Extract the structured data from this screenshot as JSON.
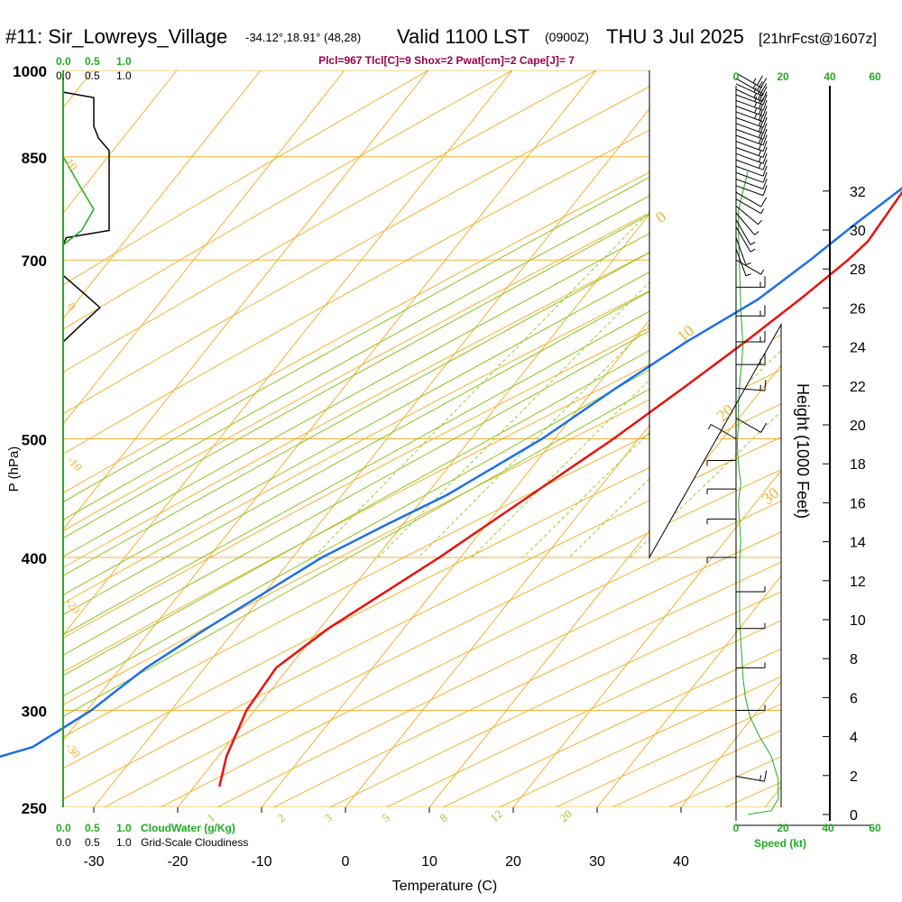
{
  "header": {
    "station": "#11: Sir_Lowreys_Village",
    "coords": "-34.12°,18.91° (48,28)",
    "valid_prefix": "Valid 1100 LST",
    "valid_utc": "(0900Z)",
    "date": "THU 3 Jul 2025",
    "forecast": "[21hrFcst@1607z]"
  },
  "indices": "Plcl=967 Tlcl[C]=9 Shox=2 Pwat[cm]=2 Cape[J]= 7",
  "left_scales": {
    "cloudwater_ticks": [
      "0.0",
      "0.5",
      "1.0"
    ],
    "cloudiness_ticks": [
      "0.0",
      "0.5",
      "1.0"
    ],
    "cloudwater_label": "CloudWater (g/Kg)",
    "cloudiness_label": "Grid-Scale Cloudiness"
  },
  "right_scales": {
    "speed_ticks_green": [
      "20",
      "60"
    ],
    "speed_ticks_black": [
      "0",
      "40"
    ],
    "speed_label": "Speed (kt)"
  },
  "colors": {
    "isobar": "#f2b233",
    "isotherm": "#f2b233",
    "dry_adiabat": "#f2b233",
    "moist_adiabat": "#8fc21f",
    "mixing_ratio": "#9acd32",
    "temperature": "#e8120c",
    "dewpoint": "#1e6fe8",
    "wind_speed": "#22aa22",
    "cloud_water": "#22aa22",
    "cloudiness": "#000000",
    "indices": "#99004c"
  },
  "chart_data": {
    "type": "line",
    "title": "",
    "xlabel": "Temperature (C)",
    "ylabel": "P (hPa)",
    "ylabel_right": "Height (1000 Feet)",
    "x_ticks": [
      -30,
      -20,
      -10,
      0,
      10,
      20,
      30,
      40
    ],
    "y_ticks": [
      250,
      300,
      400,
      500,
      700,
      850,
      1000
    ],
    "height_ticks": [
      0,
      2,
      4,
      6,
      8,
      10,
      12,
      14,
      16,
      18,
      20,
      22,
      24,
      26,
      28,
      30,
      32
    ],
    "isotherm_labels": [
      {
        "temp": -40,
        "text": "0"
      },
      {
        "temp": -30,
        "text": "10"
      },
      {
        "temp": -20,
        "text": "20"
      },
      {
        "temp": -10,
        "text": "30"
      }
    ],
    "dry_adiabat_labels": [
      "10",
      "0",
      "-10",
      "-20",
      "-30"
    ],
    "mixing_ratio_labels": [
      "1",
      "2",
      "3",
      "5",
      "8",
      "12",
      "20"
    ],
    "series": [
      {
        "name": "Temperature",
        "points": [
          [
            1000,
            14.1
          ],
          [
            975,
            11.8
          ],
          [
            950,
            10.8
          ],
          [
            925,
            10.1
          ],
          [
            900,
            9.6
          ],
          [
            875,
            9.2
          ],
          [
            850,
            8.8
          ],
          [
            800,
            8.0
          ],
          [
            750,
            8.4
          ],
          [
            725,
            8.6
          ],
          [
            700,
            8.0
          ],
          [
            650,
            6.0
          ],
          [
            600,
            3.5
          ],
          [
            550,
            0.5
          ],
          [
            500,
            -3.0
          ],
          [
            450,
            -7.5
          ],
          [
            400,
            -12.5
          ],
          [
            350,
            -19.0
          ],
          [
            325,
            -21.5
          ],
          [
            300,
            -21.0
          ],
          [
            275,
            -19.0
          ],
          [
            260,
            -17.0
          ]
        ]
      },
      {
        "name": "Dewpoint",
        "points": [
          [
            1000,
            11.8
          ],
          [
            975,
            11.0
          ],
          [
            950,
            10.4
          ],
          [
            925,
            9.8
          ],
          [
            900,
            9.3
          ],
          [
            875,
            9.1
          ],
          [
            850,
            8.6
          ],
          [
            800,
            7.6
          ],
          [
            750,
            5.5
          ],
          [
            725,
            4.5
          ],
          [
            700,
            3.5
          ],
          [
            650,
            1.0
          ],
          [
            600,
            -3.5
          ],
          [
            550,
            -7.5
          ],
          [
            500,
            -11.5
          ],
          [
            450,
            -17.5
          ],
          [
            425,
            -22.0
          ],
          [
            400,
            -26.5
          ],
          [
            350,
            -33.5
          ],
          [
            325,
            -37.0
          ],
          [
            310,
            -38.5
          ],
          [
            300,
            -39.5
          ],
          [
            280,
            -43.0
          ],
          [
            270,
            -49.0
          ],
          [
            262,
            -55.0
          ]
        ]
      }
    ],
    "wind_speed_profile": [
      [
        0.0,
        5
      ],
      [
        0.2,
        15
      ],
      [
        0.8,
        18
      ],
      [
        1.8,
        18
      ],
      [
        3.0,
        15
      ],
      [
        4.0,
        10
      ],
      [
        5.0,
        6
      ],
      [
        6.0,
        4
      ],
      [
        7.0,
        3
      ],
      [
        8.0,
        2.5
      ],
      [
        9.0,
        2
      ],
      [
        10.0,
        1.5
      ],
      [
        11.0,
        1.5
      ],
      [
        12.0,
        1.5
      ],
      [
        13.0,
        1.5
      ],
      [
        14.0,
        2
      ],
      [
        15.0,
        1.5
      ],
      [
        16.0,
        1
      ],
      [
        17.0,
        2
      ],
      [
        18.0,
        1
      ],
      [
        19.0,
        0.5
      ],
      [
        20.0,
        1
      ],
      [
        21.0,
        1
      ],
      [
        22.0,
        1.5
      ],
      [
        24.0,
        3
      ],
      [
        26.0,
        2
      ],
      [
        28.0,
        1.5
      ],
      [
        30.0,
        1
      ],
      [
        31.0,
        1
      ],
      [
        32.0,
        3
      ],
      [
        33.0,
        5
      ]
    ],
    "cloudiness_profile": [
      [
        1000,
        0.0
      ],
      [
        960,
        0.0
      ],
      [
        950,
        0.5
      ],
      [
        900,
        0.5
      ],
      [
        880,
        0.58
      ],
      [
        860,
        0.75
      ],
      [
        850,
        0.75
      ],
      [
        770,
        0.75
      ],
      [
        740,
        0.75
      ],
      [
        730,
        0.05
      ],
      [
        720,
        0.0
      ]
    ],
    "cloudiness_upper": [
      [
        680,
        0.0
      ],
      [
        660,
        0.3
      ],
      [
        640,
        0.6
      ],
      [
        620,
        0.3
      ],
      [
        600,
        0.0
      ]
    ],
    "cloudwater_profile": [
      [
        1000,
        0.0
      ],
      [
        850,
        0.0
      ],
      [
        800,
        0.3
      ],
      [
        770,
        0.5
      ],
      [
        740,
        0.3
      ],
      [
        720,
        0.0
      ]
    ],
    "wind_barbs": [
      {
        "p": 995,
        "dir": 300,
        "spd": 25
      },
      {
        "p": 985,
        "dir": 300,
        "spd": 25
      },
      {
        "p": 975,
        "dir": 295,
        "spd": 25
      },
      {
        "p": 965,
        "dir": 295,
        "spd": 25
      },
      {
        "p": 955,
        "dir": 290,
        "spd": 25
      },
      {
        "p": 945,
        "dir": 290,
        "spd": 25
      },
      {
        "p": 935,
        "dir": 290,
        "spd": 25
      },
      {
        "p": 925,
        "dir": 290,
        "spd": 25
      },
      {
        "p": 915,
        "dir": 290,
        "spd": 20
      },
      {
        "p": 905,
        "dir": 290,
        "spd": 20
      },
      {
        "p": 895,
        "dir": 290,
        "spd": 20
      },
      {
        "p": 885,
        "dir": 290,
        "spd": 20
      },
      {
        "p": 875,
        "dir": 290,
        "spd": 20
      },
      {
        "p": 865,
        "dir": 290,
        "spd": 15
      },
      {
        "p": 855,
        "dir": 290,
        "spd": 15
      },
      {
        "p": 845,
        "dir": 290,
        "spd": 15
      },
      {
        "p": 835,
        "dir": 290,
        "spd": 10
      },
      {
        "p": 825,
        "dir": 290,
        "spd": 10
      },
      {
        "p": 815,
        "dir": 290,
        "spd": 10
      },
      {
        "p": 805,
        "dir": 290,
        "spd": 10
      },
      {
        "p": 795,
        "dir": 300,
        "spd": 10
      },
      {
        "p": 785,
        "dir": 300,
        "spd": 5
      },
      {
        "p": 775,
        "dir": 310,
        "spd": 5
      },
      {
        "p": 765,
        "dir": 320,
        "spd": 5
      },
      {
        "p": 755,
        "dir": 330,
        "spd": 5
      },
      {
        "p": 745,
        "dir": 330,
        "spd": 5
      },
      {
        "p": 730,
        "dir": 340,
        "spd": 5
      },
      {
        "p": 715,
        "dir": 340,
        "spd": 5
      },
      {
        "p": 700,
        "dir": 300,
        "spd": 5
      },
      {
        "p": 665,
        "dir": 270,
        "spd": 15
      },
      {
        "p": 630,
        "dir": 270,
        "spd": 15
      },
      {
        "p": 600,
        "dir": 270,
        "spd": 15
      },
      {
        "p": 575,
        "dir": 270,
        "spd": 15
      },
      {
        "p": 550,
        "dir": 275,
        "spd": 15
      },
      {
        "p": 520,
        "dir": 300,
        "spd": 10
      },
      {
        "p": 500,
        "dir": 120,
        "spd": 5
      },
      {
        "p": 480,
        "dir": 90,
        "spd": 5
      },
      {
        "p": 455,
        "dir": 90,
        "spd": 5
      },
      {
        "p": 430,
        "dir": 90,
        "spd": 5
      },
      {
        "p": 400,
        "dir": 90,
        "spd": 5
      },
      {
        "p": 375,
        "dir": 270,
        "spd": 5
      },
      {
        "p": 350,
        "dir": 270,
        "spd": 5
      },
      {
        "p": 325,
        "dir": 270,
        "spd": 5
      },
      {
        "p": 300,
        "dir": 270,
        "spd": 5
      },
      {
        "p": 265,
        "dir": 280,
        "spd": 15
      }
    ]
  }
}
